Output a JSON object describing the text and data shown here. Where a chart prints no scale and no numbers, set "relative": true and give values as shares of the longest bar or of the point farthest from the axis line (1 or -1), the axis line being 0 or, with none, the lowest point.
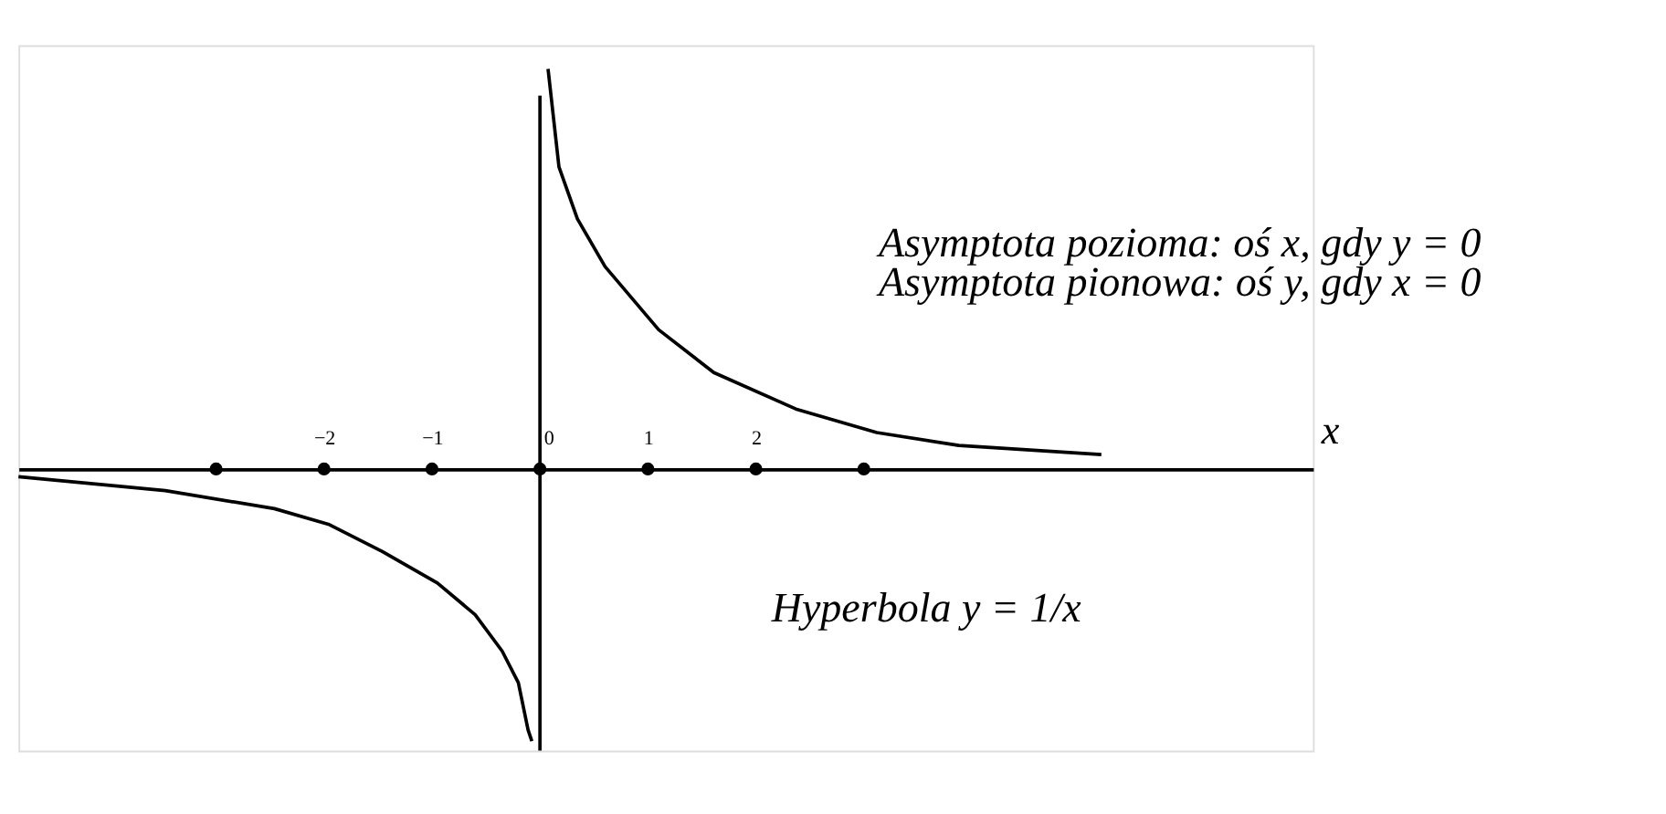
{
  "chart_data": {
    "type": "line",
    "relative": true,
    "xlabel": "x",
    "xlim": [
      -4.83,
      7.16
    ],
    "xticks": [
      {
        "value": -3,
        "label": null
      },
      {
        "value": -2,
        "label": "−2"
      },
      {
        "value": -1,
        "label": "−1"
      },
      0,
      1,
      2,
      {
        "value": 3,
        "label": null
      }
    ],
    "series": [
      {
        "color": "#000000",
        "x": [
          0.075,
          0.176,
          0.347,
          0.603,
          1.1,
          1.61,
          2.37,
          3.12,
          3.88,
          5.2
        ],
        "values": [
          1.0,
          0.755,
          0.625,
          0.506,
          0.348,
          0.241,
          0.15,
          0.091,
          0.059,
          0.036
        ]
      },
      {
        "color": "#000000",
        "x": [
          -4.83,
          -3.47,
          -2.46,
          -1.96,
          -1.46,
          -0.95,
          -0.6,
          -0.35,
          -0.2,
          -0.11,
          -0.075
        ],
        "values": [
          -0.019,
          -0.054,
          -0.099,
          -0.138,
          -0.206,
          -0.285,
          -0.364,
          -0.455,
          -0.534,
          -0.652,
          -0.68
        ]
      },
      {
        "type": "scatter",
        "marker": "circle",
        "color": "#000000",
        "x": [
          -3,
          -2,
          -1,
          0,
          1,
          2,
          3
        ],
        "values": [
          0,
          0,
          0,
          0,
          0,
          0,
          0
        ]
      }
    ],
    "ref_lines": [
      {
        "axis": "x",
        "value": 0,
        "color": "#000000"
      }
    ],
    "annotations": [
      "Asymptota pozioma: oś x, gdy y = 0",
      "Asymptota pionowa: oś y, gdy x = 0",
      "Hyperbola y = 1/x"
    ],
    "grid": false,
    "marker": "none",
    "line_style": "solid"
  }
}
